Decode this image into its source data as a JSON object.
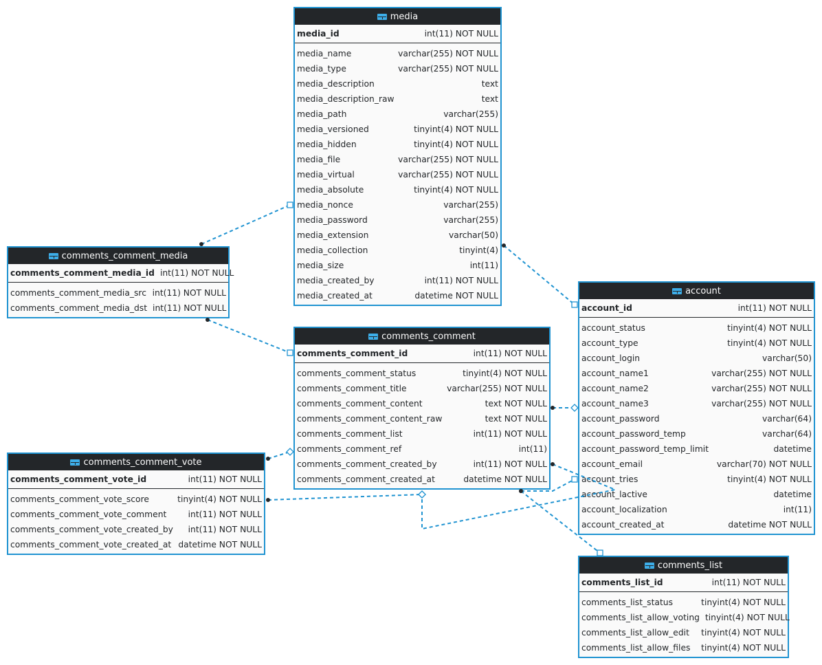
{
  "colors": {
    "header_bg": "#232629",
    "border": "#1f93d1",
    "link": "#1f93d1",
    "body_bg": "#fafafa"
  },
  "tables": [
    {
      "id": "media",
      "name": "media",
      "pk": {
        "name": "media_id",
        "type": "int(11) NOT NULL"
      },
      "columns": [
        {
          "name": "media_name",
          "type": "varchar(255) NOT NULL"
        },
        {
          "name": "media_type",
          "type": "varchar(255) NOT NULL"
        },
        {
          "name": "media_description",
          "type": "text"
        },
        {
          "name": "media_description_raw",
          "type": "text"
        },
        {
          "name": "media_path",
          "type": "varchar(255)"
        },
        {
          "name": "media_versioned",
          "type": "tinyint(4) NOT NULL"
        },
        {
          "name": "media_hidden",
          "type": "tinyint(4) NOT NULL"
        },
        {
          "name": "media_file",
          "type": "varchar(255) NOT NULL"
        },
        {
          "name": "media_virtual",
          "type": "varchar(255) NOT NULL"
        },
        {
          "name": "media_absolute",
          "type": "tinyint(4) NOT NULL"
        },
        {
          "name": "media_nonce",
          "type": "varchar(255)"
        },
        {
          "name": "media_password",
          "type": "varchar(255)"
        },
        {
          "name": "media_extension",
          "type": "varchar(50)"
        },
        {
          "name": "media_collection",
          "type": "tinyint(4)"
        },
        {
          "name": "media_size",
          "type": "int(11)"
        },
        {
          "name": "media_created_by",
          "type": "int(11) NOT NULL"
        },
        {
          "name": "media_created_at",
          "type": "datetime NOT NULL"
        }
      ]
    },
    {
      "id": "ccm",
      "name": "comments_comment_media",
      "pk": {
        "name": "comments_comment_media_id",
        "type": "int(11) NOT NULL"
      },
      "columns": [
        {
          "name": "comments_comment_media_src",
          "type": "int(11) NOT NULL"
        },
        {
          "name": "comments_comment_media_dst",
          "type": "int(11) NOT NULL"
        }
      ]
    },
    {
      "id": "cc",
      "name": "comments_comment",
      "pk": {
        "name": "comments_comment_id",
        "type": "int(11) NOT NULL"
      },
      "columns": [
        {
          "name": "comments_comment_status",
          "type": "tinyint(4) NOT NULL"
        },
        {
          "name": "comments_comment_title",
          "type": "varchar(255) NOT NULL"
        },
        {
          "name": "comments_comment_content",
          "type": "text NOT NULL"
        },
        {
          "name": "comments_comment_content_raw",
          "type": "text NOT NULL"
        },
        {
          "name": "comments_comment_list",
          "type": "int(11) NOT NULL"
        },
        {
          "name": "comments_comment_ref",
          "type": "int(11)"
        },
        {
          "name": "comments_comment_created_by",
          "type": "int(11) NOT NULL"
        },
        {
          "name": "comments_comment_created_at",
          "type": "datetime NOT NULL"
        }
      ]
    },
    {
      "id": "ccv",
      "name": "comments_comment_vote",
      "pk": {
        "name": "comments_comment_vote_id",
        "type": "int(11) NOT NULL"
      },
      "columns": [
        {
          "name": "comments_comment_vote_score",
          "type": "tinyint(4) NOT NULL"
        },
        {
          "name": "comments_comment_vote_comment",
          "type": "int(11) NOT NULL"
        },
        {
          "name": "comments_comment_vote_created_by",
          "type": "int(11) NOT NULL"
        },
        {
          "name": "comments_comment_vote_created_at",
          "type": "datetime NOT NULL"
        }
      ]
    },
    {
      "id": "account",
      "name": "account",
      "pk": {
        "name": "account_id",
        "type": "int(11) NOT NULL"
      },
      "columns": [
        {
          "name": "account_status",
          "type": "tinyint(4) NOT NULL"
        },
        {
          "name": "account_type",
          "type": "tinyint(4) NOT NULL"
        },
        {
          "name": "account_login",
          "type": "varchar(50)"
        },
        {
          "name": "account_name1",
          "type": "varchar(255) NOT NULL"
        },
        {
          "name": "account_name2",
          "type": "varchar(255) NOT NULL"
        },
        {
          "name": "account_name3",
          "type": "varchar(255) NOT NULL"
        },
        {
          "name": "account_password",
          "type": "varchar(64)"
        },
        {
          "name": "account_password_temp",
          "type": "varchar(64)"
        },
        {
          "name": "account_password_temp_limit",
          "type": "datetime"
        },
        {
          "name": "account_email",
          "type": "varchar(70) NOT NULL"
        },
        {
          "name": "account_tries",
          "type": "tinyint(4) NOT NULL"
        },
        {
          "name": "account_lactive",
          "type": "datetime"
        },
        {
          "name": "account_localization",
          "type": "int(11)"
        },
        {
          "name": "account_created_at",
          "type": "datetime NOT NULL"
        }
      ]
    },
    {
      "id": "clist",
      "name": "comments_list",
      "pk": {
        "name": "comments_list_id",
        "type": "int(11) NOT NULL"
      },
      "columns": [
        {
          "name": "comments_list_status",
          "type": "tinyint(4) NOT NULL"
        },
        {
          "name": "comments_list_allow_voting",
          "type": "tinyint(4) NOT NULL"
        },
        {
          "name": "comments_list_allow_edit",
          "type": "tinyint(4) NOT NULL"
        },
        {
          "name": "comments_list_allow_files",
          "type": "tinyint(4) NOT NULL"
        }
      ]
    }
  ],
  "relationships": [
    {
      "from": "comments_comment_media",
      "to": "media"
    },
    {
      "from": "media",
      "to": "account"
    },
    {
      "from": "comments_comment_media",
      "to": "comments_comment"
    },
    {
      "from": "comments_comment",
      "to": "account"
    },
    {
      "from": "comments_comment_vote",
      "to": "comments_comment"
    },
    {
      "from": "comments_comment_vote",
      "to": "comments_comment"
    },
    {
      "from": "comments_comment",
      "to": "comments_comment"
    },
    {
      "from": "comments_comment",
      "to": "account"
    },
    {
      "from": "comments_comment",
      "to": "comments_list"
    }
  ]
}
